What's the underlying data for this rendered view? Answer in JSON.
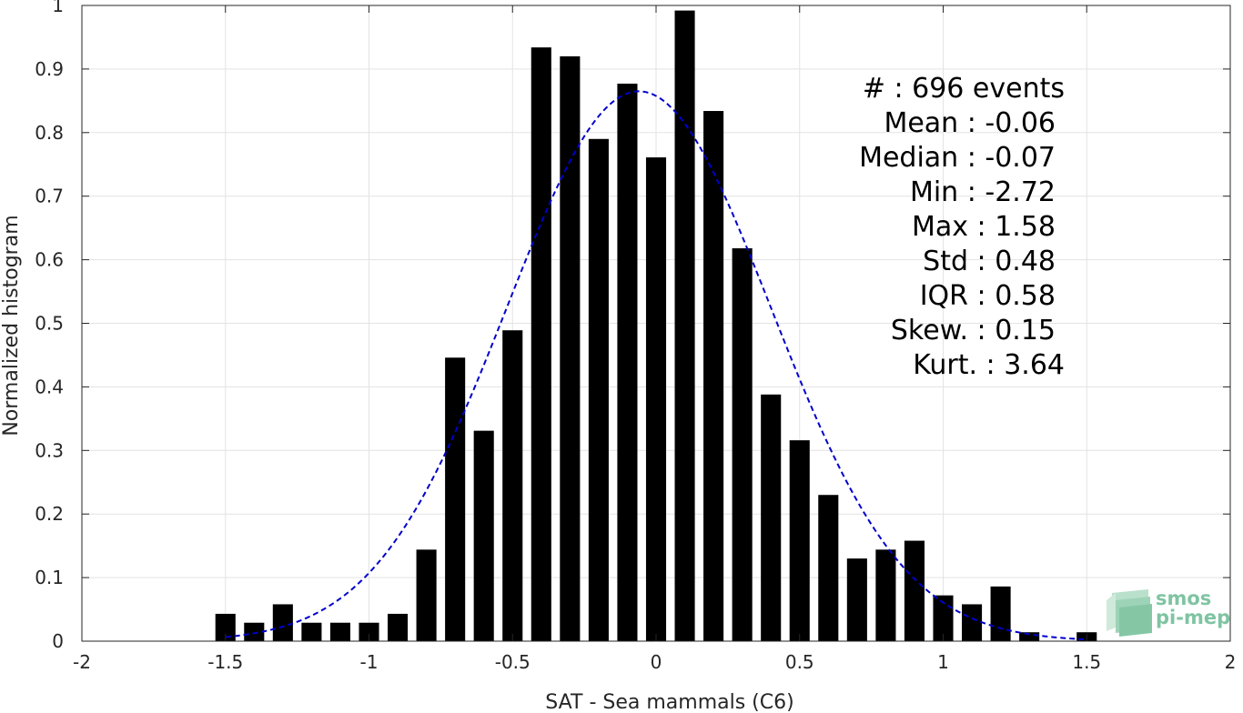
{
  "chart_data": {
    "type": "bar",
    "title": "",
    "xlabel": "SAT - Sea mammals (C6)",
    "ylabel": "Normalized histogram",
    "xlim": [
      -2,
      2
    ],
    "ylim": [
      0,
      1
    ],
    "xticks": [
      "-2",
      "-1.5",
      "-1",
      "-0.5",
      "0",
      "0.5",
      "1",
      "1.5",
      "2"
    ],
    "yticks": [
      "0",
      "0.1",
      "0.2",
      "0.3",
      "0.4",
      "0.5",
      "0.6",
      "0.7",
      "0.8",
      "0.9",
      "1"
    ],
    "grid": true,
    "bar_color": "#000000",
    "bin_width": 0.1,
    "bars": {
      "x": [
        -1.5,
        -1.4,
        -1.3,
        -1.2,
        -1.1,
        -1.0,
        -0.9,
        -0.8,
        -0.7,
        -0.6,
        -0.5,
        -0.4,
        -0.3,
        -0.2,
        -0.1,
        0.0,
        0.1,
        0.2,
        0.3,
        0.4,
        0.5,
        0.6,
        0.7,
        0.8,
        0.9,
        1.0,
        1.1,
        1.2,
        1.3,
        1.5
      ],
      "values": [
        0.043,
        0.029,
        0.058,
        0.029,
        0.029,
        0.029,
        0.043,
        0.144,
        0.446,
        0.331,
        0.489,
        0.934,
        0.92,
        0.79,
        0.877,
        0.761,
        0.992,
        0.834,
        0.618,
        0.388,
        0.316,
        0.23,
        0.13,
        0.144,
        0.158,
        0.072,
        0.058,
        0.086,
        0.014,
        0.014
      ]
    },
    "fit_curve": {
      "style": "dashed",
      "color": "#0000cc",
      "x_range": [
        -1.5,
        1.5
      ],
      "mean": -0.06,
      "std": 0.46,
      "peak": 0.865
    },
    "stats": [
      "#  : 696 events",
      "Mean : -0.06",
      "Median : -0.07",
      "Min : -2.72",
      "Max : 1.58",
      "Std : 0.48",
      "IQR : 0.58",
      "Skew. : 0.15",
      "Kurt. : 3.64"
    ]
  },
  "logo": {
    "line1": "smos",
    "line2": "pi-mep",
    "color": "#7fc4a2"
  }
}
